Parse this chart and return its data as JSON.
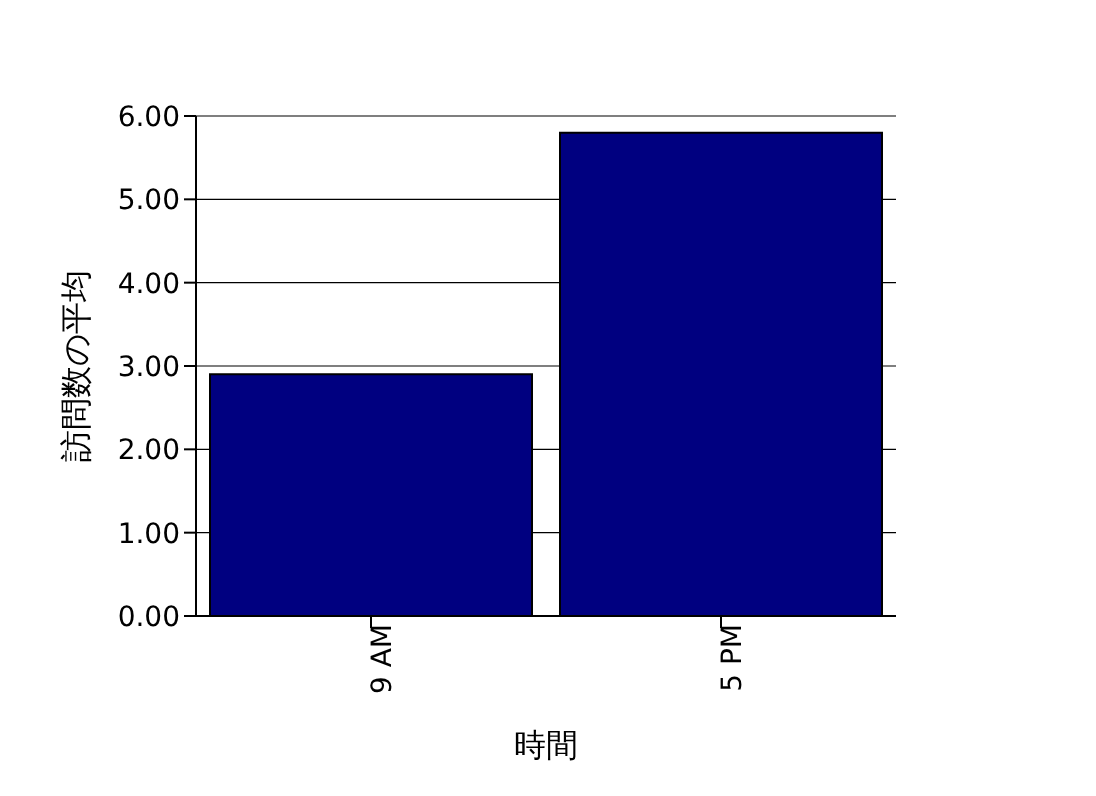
{
  "chart_data": {
    "type": "bar",
    "xlabel": "時間",
    "ylabel": "訪問数の平均",
    "categories": [
      "9 AM",
      "5 PM"
    ],
    "values": [
      2.9,
      5.8
    ],
    "color": "#000080",
    "ylim": [
      0,
      6
    ],
    "yticks": [
      {
        "value": 0,
        "label": "0.00"
      },
      {
        "value": 1,
        "label": "1.00"
      },
      {
        "value": 2,
        "label": "2.00"
      },
      {
        "value": 3,
        "label": "3.00"
      },
      {
        "value": 4,
        "label": "4.00"
      },
      {
        "value": 5,
        "label": "5.00"
      },
      {
        "value": 6,
        "label": "6.00"
      }
    ],
    "grid": "y",
    "legend": false
  }
}
